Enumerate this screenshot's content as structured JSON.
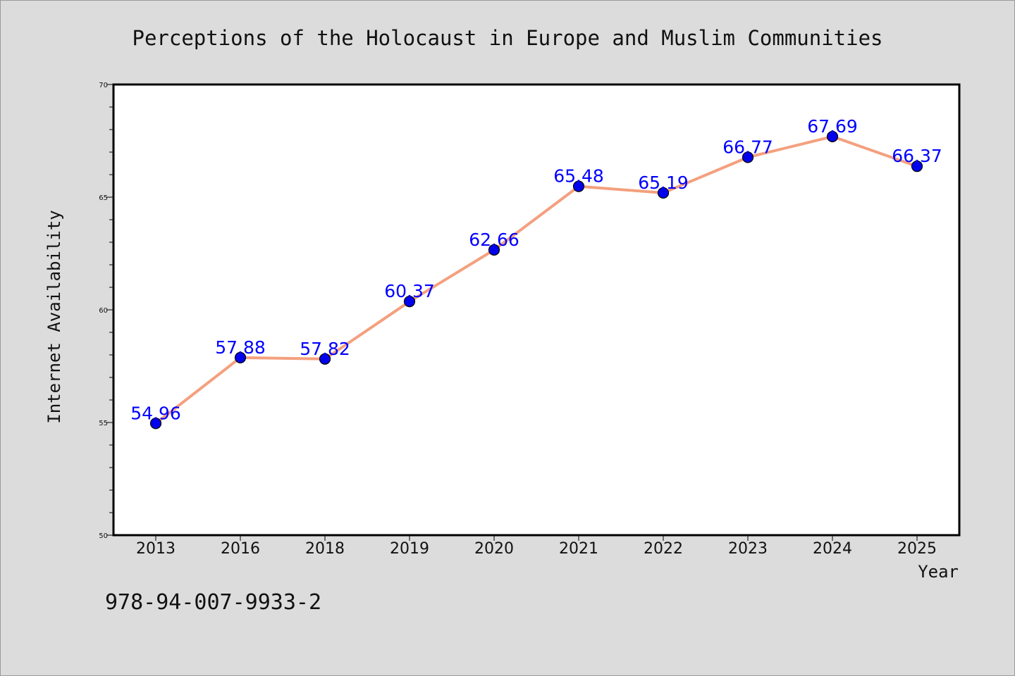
{
  "chart_data": {
    "type": "line",
    "title": "Perceptions of the Holocaust in Europe and Muslim Communities",
    "xlabel": "Year",
    "ylabel": "Internet Availability",
    "categories": [
      "2013",
      "2016",
      "2018",
      "2019",
      "2020",
      "2021",
      "2022",
      "2023",
      "2024",
      "2025"
    ],
    "series": [
      {
        "values": [
          54.96,
          57.88,
          57.82,
          60.37,
          62.66,
          65.48,
          65.19,
          66.77,
          67.69,
          66.37
        ],
        "labels": [
          "54.96",
          "57.88",
          "57.82",
          "60.37",
          "62.66",
          "65.48",
          "65.19",
          "66.77",
          "67.69",
          "66.37"
        ]
      }
    ],
    "ylim": [
      50,
      70
    ],
    "y_ticks": [
      "50",
      "55",
      "60",
      "65",
      "70"
    ],
    "grid": false,
    "legend": "none",
    "colors": {
      "line": "#f4a07e",
      "marker_fill": "#0000ee",
      "marker_edge": "#000000",
      "data_label": "#0000ff",
      "plot_background": "#ffffff",
      "figure_background": "#dcdcdc"
    }
  },
  "footer_text": "978-94-007-9933-2"
}
